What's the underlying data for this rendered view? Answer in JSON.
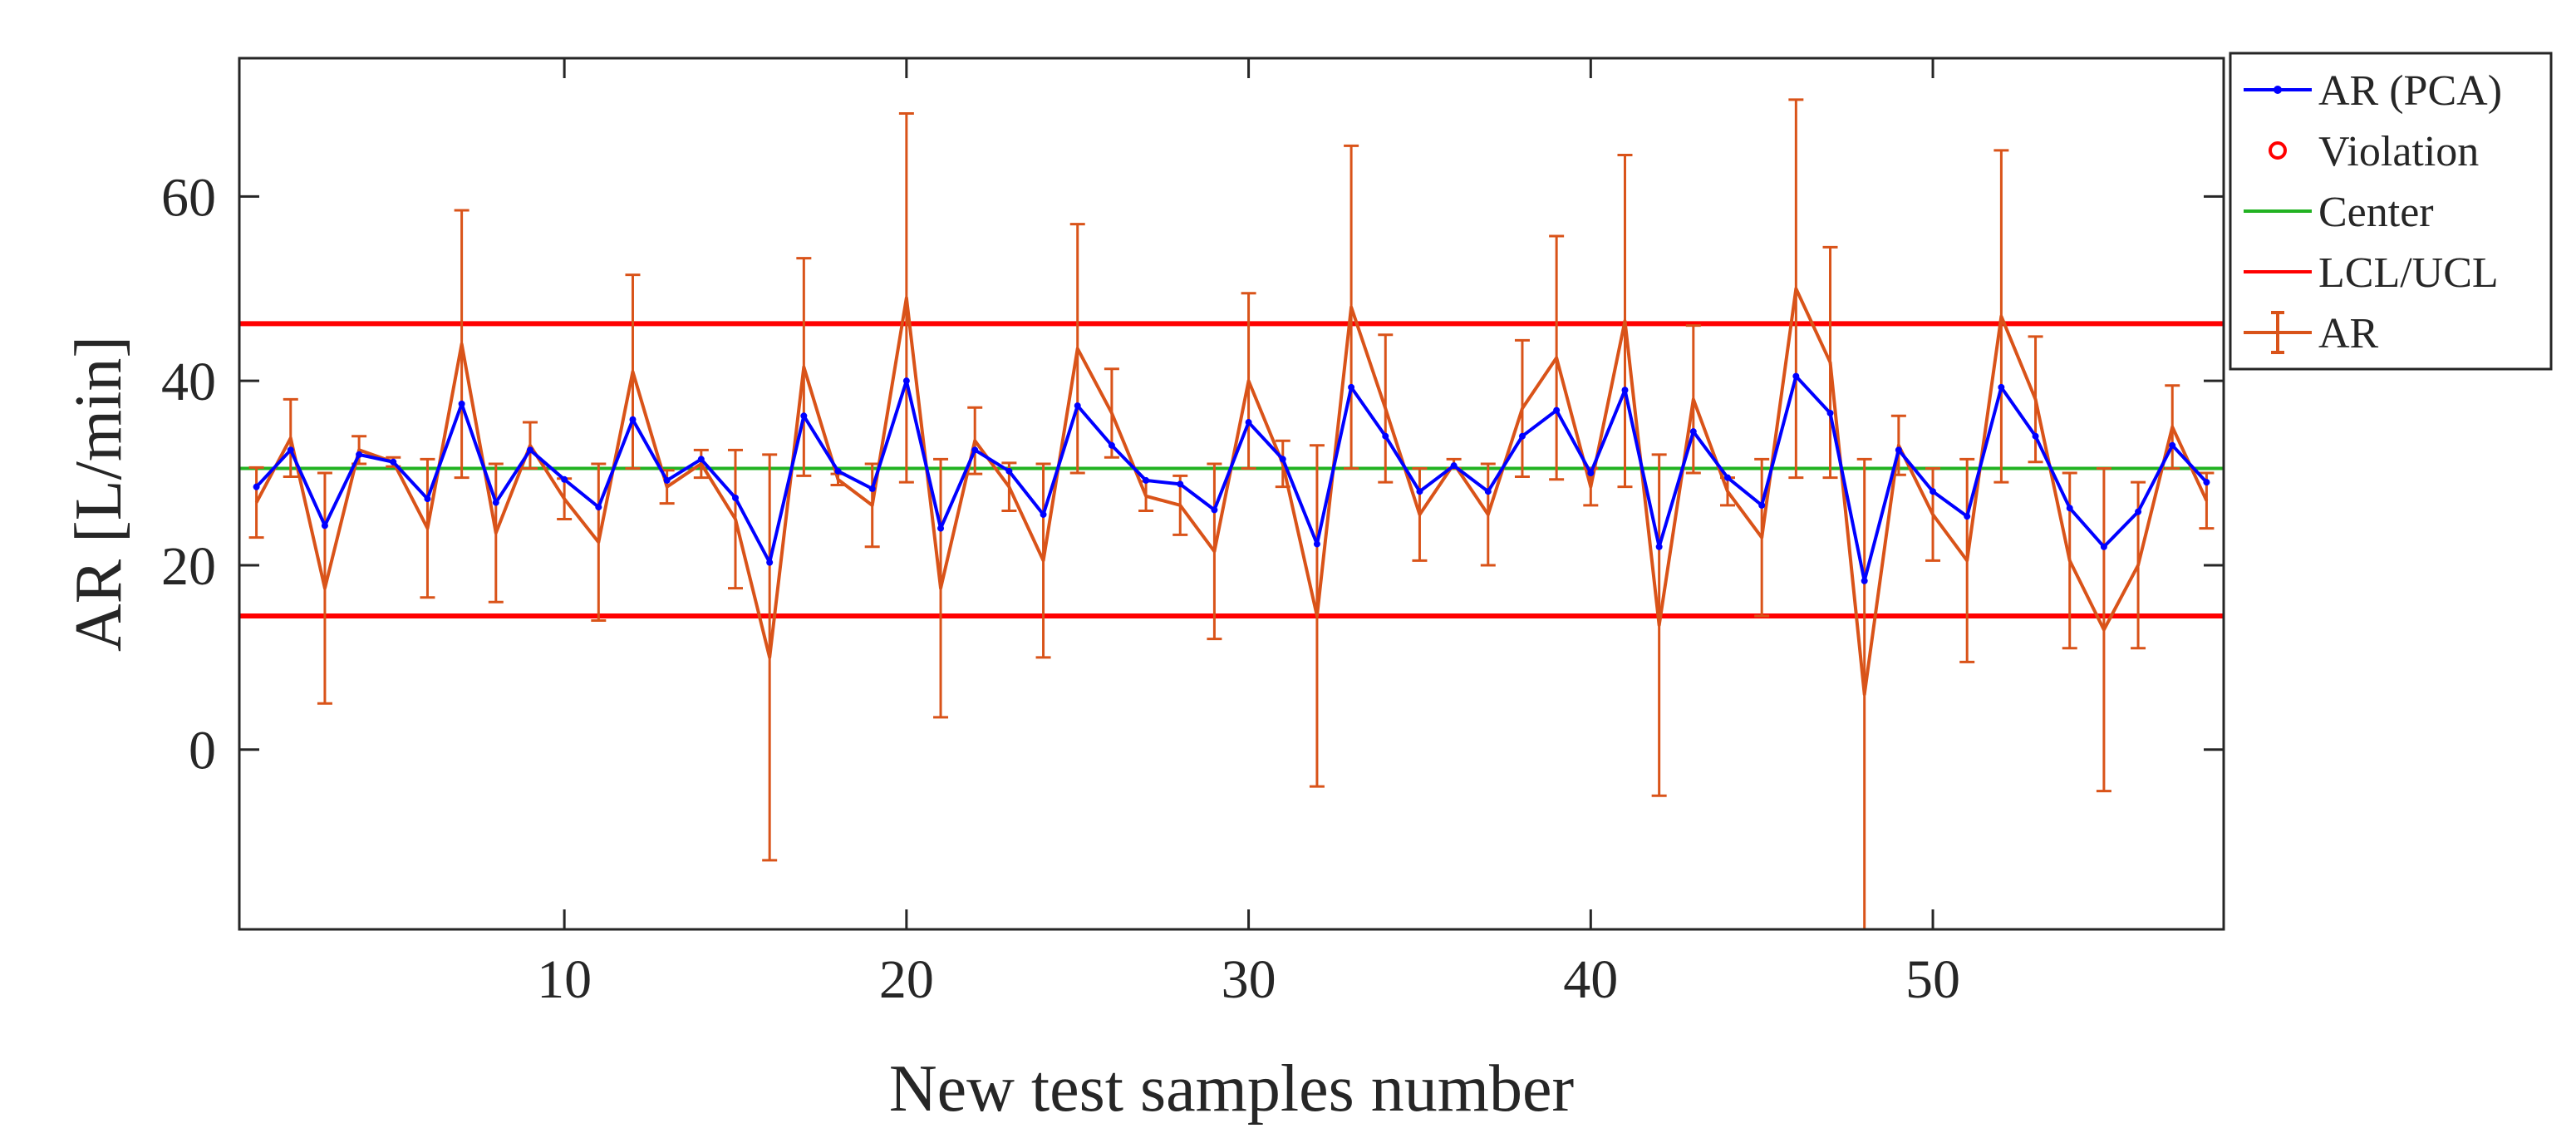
{
  "chart_data": {
    "type": "line",
    "title": "",
    "xlabel": "New test samples number",
    "ylabel": "AR [L/min]",
    "xlim": [
      0.5,
      58.5
    ],
    "ylim": [
      -19.5,
      75
    ],
    "xticks": [
      10,
      20,
      30,
      40,
      50
    ],
    "yticks": [
      0,
      20,
      40,
      60
    ],
    "grid": false,
    "legend_position": "outside top-right",
    "legend": {
      "ar_pca": "AR (PCA)",
      "violation": "Violation",
      "center": "Center",
      "limits": "LCL/UCL",
      "ar": "AR"
    },
    "center": 30.5,
    "lcl": 14.5,
    "ucl": 46.2,
    "colors": {
      "ar_pca": "#0000ff",
      "violation": "#ff0000",
      "center": "#22b222",
      "limits": "#ff0000",
      "ar": "#d95319",
      "axis": "#262626"
    },
    "x": [
      1,
      2,
      3,
      4,
      5,
      6,
      7,
      8,
      9,
      10,
      11,
      12,
      13,
      14,
      15,
      16,
      17,
      18,
      19,
      20,
      21,
      22,
      23,
      24,
      25,
      26,
      27,
      28,
      29,
      30,
      31,
      32,
      33,
      34,
      35,
      36,
      37,
      38,
      39,
      40,
      41,
      42,
      43,
      44,
      45,
      46,
      47,
      48,
      49,
      50,
      51,
      52,
      53,
      54,
      55,
      56,
      57,
      58
    ],
    "series": [
      {
        "name": "AR (PCA)",
        "values": [
          28.5,
          32.5,
          24.3,
          32.0,
          31.2,
          27.2,
          37.5,
          26.8,
          32.5,
          29.3,
          26.3,
          35.8,
          29.2,
          31.5,
          27.3,
          20.3,
          36.2,
          30.2,
          28.3,
          40.0,
          24.0,
          32.5,
          30.2,
          25.5,
          37.3,
          33.0,
          29.2,
          28.8,
          26.0,
          35.5,
          31.5,
          22.3,
          39.3,
          34.0,
          28.0,
          30.8,
          28.0,
          34.0,
          36.8,
          30.0,
          39.0,
          22.0,
          34.5,
          29.5,
          26.5,
          40.5,
          36.5,
          18.3,
          32.5,
          28.0,
          25.3,
          39.3,
          34.0,
          26.2,
          22.0,
          25.8,
          33.0,
          29.0
        ]
      },
      {
        "name": "AR",
        "values": [
          26.8,
          33.8,
          17.5,
          32.5,
          31.2,
          24.0,
          44.0,
          23.5,
          33.0,
          27.2,
          22.5,
          41.0,
          28.5,
          31.0,
          25.0,
          10.0,
          41.5,
          29.3,
          26.5,
          49.0,
          17.5,
          33.5,
          28.5,
          20.5,
          43.5,
          36.5,
          27.5,
          26.5,
          21.5,
          40.0,
          31.0,
          14.5,
          48.0,
          37.0,
          25.5,
          31.0,
          25.5,
          37.0,
          42.5,
          28.5,
          46.5,
          13.5,
          38.0,
          28.0,
          23.0,
          50.0,
          42.0,
          6.0,
          33.0,
          25.5,
          20.5,
          47.0,
          38.0,
          20.5,
          13.0,
          20.0,
          35.0,
          27.0
        ],
        "error": [
          3.8,
          4.2,
          12.5,
          1.5,
          0.5,
          7.5,
          14.5,
          7.5,
          2.5,
          2.2,
          8.5,
          10.5,
          1.8,
          1.5,
          7.5,
          22.0,
          11.8,
          0.6,
          4.5,
          20.0,
          14.0,
          3.6,
          2.6,
          10.5,
          13.5,
          4.8,
          1.6,
          3.2,
          9.5,
          9.5,
          2.5,
          18.5,
          17.5,
          8.0,
          5.0,
          0.5,
          5.5,
          7.4,
          13.2,
          2.0,
          18.0,
          18.5,
          8.0,
          1.5,
          8.5,
          20.5,
          12.5,
          25.5,
          3.2,
          5.0,
          11.0,
          18.0,
          6.8,
          9.5,
          17.5,
          9.0,
          4.5,
          3.0
        ]
      }
    ]
  }
}
